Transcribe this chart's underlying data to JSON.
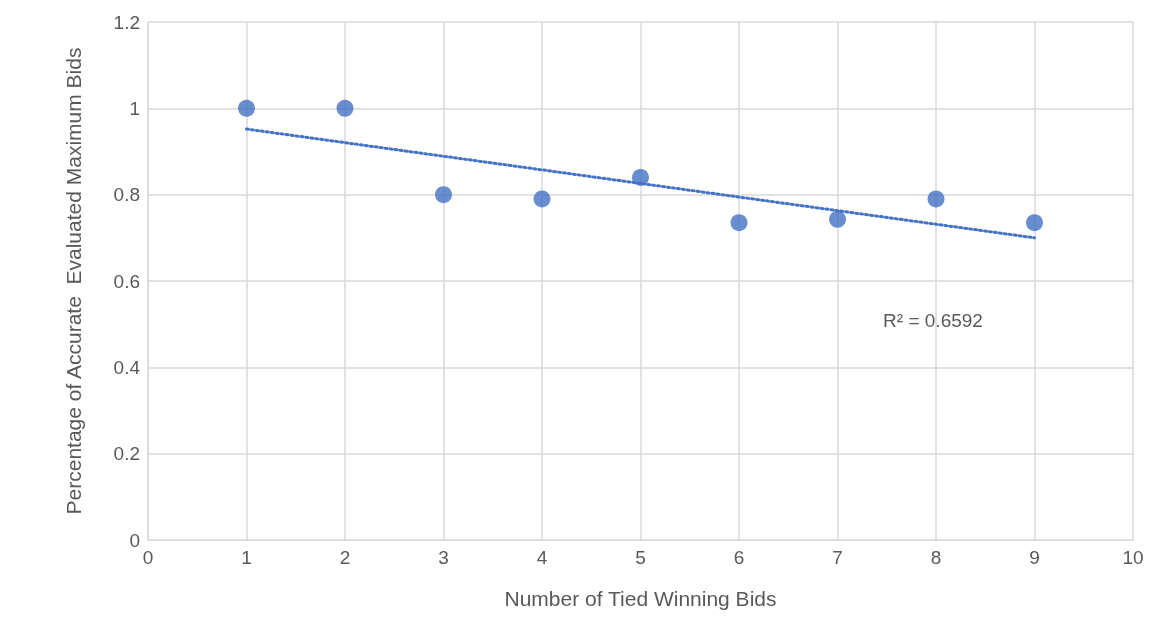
{
  "chart_data": {
    "type": "scatter",
    "xlabel": "Number of Tied Winning Bids",
    "ylabel": "Percentage of Accurate  Evaluated Maximum Bids",
    "x": [
      1,
      2,
      3,
      4,
      5,
      6,
      7,
      8,
      9
    ],
    "series": [
      {
        "color": "#4472c4",
        "marker": "circle",
        "values": [
          1.0,
          1.0,
          0.8,
          0.79,
          0.84,
          0.735,
          0.743,
          0.79,
          0.735
        ]
      },
      {
        "type": "line",
        "color": "#4472c4",
        "line_style": "dotted",
        "marker": "none",
        "x": [
          1,
          9
        ],
        "values": [
          0.952,
          0.7
        ]
      }
    ],
    "xlim": [
      0,
      10
    ],
    "xticks": [
      0,
      1,
      2,
      3,
      4,
      5,
      6,
      7,
      8,
      9,
      10
    ],
    "ylim": [
      0,
      1.2
    ],
    "yticks": [
      0,
      0.2,
      0.4,
      0.6,
      0.8,
      1,
      1.2
    ],
    "grid": true,
    "annotations": [
      "R² = 0.6592"
    ]
  }
}
